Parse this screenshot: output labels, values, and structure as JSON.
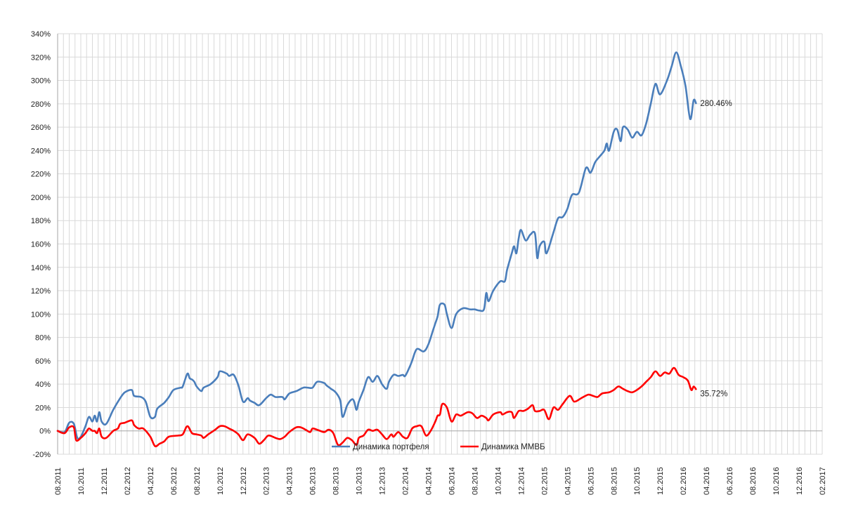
{
  "chart_data": {
    "type": "line",
    "title": "",
    "xlabel": "",
    "ylabel": "",
    "ylim": [
      -20,
      340
    ],
    "y_ticks": [
      "-20%",
      "0%",
      "20%",
      "40%",
      "60%",
      "80%",
      "100%",
      "120%",
      "140%",
      "160%",
      "180%",
      "200%",
      "220%",
      "240%",
      "260%",
      "280%",
      "300%",
      "320%",
      "340%"
    ],
    "x_ticks": [
      "08.2011",
      "10.2011",
      "12.2011",
      "02.2012",
      "04.2012",
      "06.2012",
      "08.2012",
      "10.2012",
      "12.2012",
      "02.2013",
      "04.2013",
      "06.2013",
      "08.2013",
      "10.2013",
      "12.2013",
      "02.2014",
      "04.2014",
      "06.2014",
      "08.2014",
      "10.2014",
      "12.2014",
      "02.2015",
      "04.2015",
      "06.2015",
      "08.2015",
      "10.2015",
      "12.2015",
      "02.2016",
      "04.2016",
      "06.2016",
      "08.2016",
      "10.2016",
      "12.2016",
      "02.2017"
    ],
    "grid": true,
    "legend_position": "bottom",
    "series": [
      {
        "name": "Динамика портфеля",
        "color": "#4a7ebb",
        "end_label": "280.46%",
        "points": [
          [
            0,
            0
          ],
          [
            0.3,
            -1
          ],
          [
            0.5,
            7
          ],
          [
            0.7,
            6
          ],
          [
            0.85,
            -6
          ],
          [
            1.0,
            -5
          ],
          [
            1.2,
            4
          ],
          [
            1.35,
            12
          ],
          [
            1.5,
            8
          ],
          [
            1.6,
            13
          ],
          [
            1.7,
            8
          ],
          [
            1.8,
            16
          ],
          [
            1.9,
            8
          ],
          [
            2.1,
            6
          ],
          [
            2.4,
            18
          ],
          [
            2.7,
            28
          ],
          [
            2.9,
            33
          ],
          [
            3.2,
            35
          ],
          [
            3.3,
            30
          ],
          [
            3.6,
            29
          ],
          [
            3.8,
            25
          ],
          [
            4.0,
            12
          ],
          [
            4.2,
            12
          ],
          [
            4.3,
            19
          ],
          [
            4.6,
            24
          ],
          [
            4.8,
            29
          ],
          [
            5.0,
            35
          ],
          [
            5.3,
            37
          ],
          [
            5.4,
            38
          ],
          [
            5.6,
            49
          ],
          [
            5.7,
            45
          ],
          [
            5.8,
            44
          ],
          [
            5.9,
            42
          ],
          [
            6.0,
            38
          ],
          [
            6.2,
            34
          ],
          [
            6.3,
            37
          ],
          [
            6.6,
            40
          ],
          [
            6.9,
            46
          ],
          [
            7.0,
            51
          ],
          [
            7.3,
            49
          ],
          [
            7.4,
            47
          ],
          [
            7.6,
            48
          ],
          [
            7.8,
            39
          ],
          [
            8.0,
            25
          ],
          [
            8.2,
            28
          ],
          [
            8.3,
            26
          ],
          [
            8.5,
            24
          ],
          [
            8.7,
            22
          ],
          [
            9.0,
            28
          ],
          [
            9.2,
            31
          ],
          [
            9.4,
            29
          ],
          [
            9.7,
            29
          ],
          [
            9.8,
            27
          ],
          [
            10.0,
            32
          ],
          [
            10.3,
            34
          ],
          [
            10.6,
            37
          ],
          [
            10.8,
            37
          ],
          [
            11.0,
            37
          ],
          [
            11.2,
            42
          ],
          [
            11.5,
            41
          ],
          [
            11.6,
            39
          ],
          [
            11.8,
            36
          ],
          [
            12.0,
            33
          ],
          [
            12.2,
            26
          ],
          [
            12.3,
            12
          ],
          [
            12.5,
            22
          ],
          [
            12.7,
            27
          ],
          [
            12.8,
            25
          ],
          [
            12.9,
            18
          ],
          [
            13.0,
            25
          ],
          [
            13.2,
            35
          ],
          [
            13.4,
            46
          ],
          [
            13.6,
            42
          ],
          [
            13.8,
            47
          ],
          [
            14.0,
            40
          ],
          [
            14.2,
            36
          ],
          [
            14.3,
            42
          ],
          [
            14.5,
            48
          ],
          [
            14.7,
            47
          ],
          [
            14.9,
            48
          ],
          [
            15.0,
            47
          ],
          [
            15.2,
            55
          ],
          [
            15.3,
            60
          ],
          [
            15.5,
            70
          ],
          [
            15.8,
            68
          ],
          [
            16.0,
            74
          ],
          [
            16.2,
            86
          ],
          [
            16.3,
            92
          ],
          [
            16.4,
            98
          ],
          [
            16.5,
            108
          ],
          [
            16.7,
            108
          ],
          [
            16.8,
            100
          ],
          [
            17.0,
            88
          ],
          [
            17.2,
            100
          ],
          [
            17.5,
            105
          ],
          [
            17.8,
            104
          ],
          [
            18.0,
            104
          ],
          [
            18.2,
            103
          ],
          [
            18.4,
            104
          ],
          [
            18.5,
            118
          ],
          [
            18.6,
            111
          ],
          [
            18.8,
            120
          ],
          [
            19.1,
            128
          ],
          [
            19.3,
            128
          ],
          [
            19.4,
            138
          ],
          [
            19.6,
            152
          ],
          [
            19.7,
            158
          ],
          [
            19.8,
            152
          ],
          [
            19.9,
            165
          ],
          [
            20.0,
            172
          ],
          [
            20.2,
            163
          ],
          [
            20.4,
            168
          ],
          [
            20.6,
            169
          ],
          [
            20.7,
            148
          ],
          [
            20.8,
            158
          ],
          [
            21.0,
            162
          ],
          [
            21.1,
            152
          ],
          [
            21.4,
            170
          ],
          [
            21.6,
            182
          ],
          [
            21.8,
            183
          ],
          [
            22.0,
            190
          ],
          [
            22.2,
            202
          ],
          [
            22.5,
            204
          ],
          [
            22.8,
            225
          ],
          [
            23.0,
            221
          ],
          [
            23.2,
            230
          ],
          [
            23.4,
            235
          ],
          [
            23.6,
            240
          ],
          [
            23.7,
            246
          ],
          [
            23.8,
            240
          ],
          [
            24.0,
            256
          ],
          [
            24.15,
            258
          ],
          [
            24.3,
            248
          ],
          [
            24.4,
            260
          ],
          [
            24.6,
            258
          ],
          [
            24.8,
            251
          ],
          [
            25.0,
            256
          ],
          [
            25.2,
            253
          ],
          [
            25.4,
            263
          ],
          [
            25.6,
            280
          ],
          [
            25.8,
            297
          ],
          [
            26.0,
            288
          ],
          [
            26.3,
            300
          ],
          [
            26.5,
            312
          ],
          [
            26.7,
            324
          ],
          [
            26.9,
            312
          ],
          [
            27.1,
            295
          ],
          [
            27.3,
            267
          ],
          [
            27.45,
            283
          ],
          [
            27.55,
            280.5
          ]
        ]
      },
      {
        "name": "Динамика ММВБ",
        "color": "#ff0000",
        "end_label": "35.72%",
        "points": [
          [
            0,
            0
          ],
          [
            0.3,
            -2
          ],
          [
            0.5,
            3
          ],
          [
            0.7,
            3
          ],
          [
            0.8,
            -8
          ],
          [
            1.0,
            -6
          ],
          [
            1.2,
            -2
          ],
          [
            1.35,
            2
          ],
          [
            1.5,
            0
          ],
          [
            1.6,
            0
          ],
          [
            1.7,
            -2
          ],
          [
            1.8,
            2
          ],
          [
            1.9,
            -5
          ],
          [
            2.1,
            -6
          ],
          [
            2.4,
            0
          ],
          [
            2.6,
            2
          ],
          [
            2.7,
            6
          ],
          [
            2.9,
            7
          ],
          [
            3.2,
            9
          ],
          [
            3.3,
            5
          ],
          [
            3.5,
            2
          ],
          [
            3.7,
            2
          ],
          [
            4.0,
            -5
          ],
          [
            4.2,
            -13
          ],
          [
            4.4,
            -11
          ],
          [
            4.6,
            -9
          ],
          [
            4.8,
            -5
          ],
          [
            5.2,
            -4
          ],
          [
            5.4,
            -3
          ],
          [
            5.6,
            4
          ],
          [
            5.8,
            -2
          ],
          [
            6.0,
            -3
          ],
          [
            6.2,
            -4
          ],
          [
            6.3,
            -6
          ],
          [
            6.5,
            -3
          ],
          [
            6.8,
            1
          ],
          [
            7.0,
            4
          ],
          [
            7.2,
            4
          ],
          [
            7.4,
            2
          ],
          [
            7.6,
            0
          ],
          [
            7.8,
            -3
          ],
          [
            8.0,
            -8
          ],
          [
            8.2,
            -3
          ],
          [
            8.5,
            -6
          ],
          [
            8.7,
            -11
          ],
          [
            8.9,
            -8
          ],
          [
            9.1,
            -4
          ],
          [
            9.4,
            -6
          ],
          [
            9.6,
            -7
          ],
          [
            9.8,
            -5
          ],
          [
            10.0,
            -1
          ],
          [
            10.3,
            3
          ],
          [
            10.5,
            3
          ],
          [
            10.7,
            1
          ],
          [
            10.9,
            -1
          ],
          [
            11.0,
            2
          ],
          [
            11.2,
            1
          ],
          [
            11.5,
            -1
          ],
          [
            11.7,
            1
          ],
          [
            11.9,
            -2
          ],
          [
            12.1,
            -12
          ],
          [
            12.3,
            -10
          ],
          [
            12.5,
            -6
          ],
          [
            12.7,
            -8
          ],
          [
            12.9,
            -12
          ],
          [
            13.0,
            -6
          ],
          [
            13.2,
            -4
          ],
          [
            13.4,
            1
          ],
          [
            13.6,
            0
          ],
          [
            13.8,
            1
          ],
          [
            14.0,
            -3
          ],
          [
            14.2,
            -7
          ],
          [
            14.4,
            -3
          ],
          [
            14.5,
            -5
          ],
          [
            14.7,
            -1
          ],
          [
            14.9,
            -5
          ],
          [
            15.1,
            -6
          ],
          [
            15.3,
            2
          ],
          [
            15.5,
            4
          ],
          [
            15.7,
            4
          ],
          [
            15.9,
            -4
          ],
          [
            16.1,
            0
          ],
          [
            16.3,
            8
          ],
          [
            16.4,
            13
          ],
          [
            16.5,
            14
          ],
          [
            16.6,
            23
          ],
          [
            16.8,
            20
          ],
          [
            17.0,
            8
          ],
          [
            17.2,
            14
          ],
          [
            17.4,
            13
          ],
          [
            17.7,
            16
          ],
          [
            17.9,
            15
          ],
          [
            18.1,
            11
          ],
          [
            18.3,
            13
          ],
          [
            18.5,
            11
          ],
          [
            18.6,
            9
          ],
          [
            18.8,
            14
          ],
          [
            19.1,
            16
          ],
          [
            19.2,
            14
          ],
          [
            19.4,
            16
          ],
          [
            19.6,
            16
          ],
          [
            19.7,
            11
          ],
          [
            19.9,
            17
          ],
          [
            20.1,
            17
          ],
          [
            20.3,
            19
          ],
          [
            20.5,
            22
          ],
          [
            20.6,
            17
          ],
          [
            20.8,
            17
          ],
          [
            21.0,
            18
          ],
          [
            21.2,
            10
          ],
          [
            21.4,
            20
          ],
          [
            21.6,
            18
          ],
          [
            21.8,
            23
          ],
          [
            22.1,
            30
          ],
          [
            22.3,
            25
          ],
          [
            22.6,
            28
          ],
          [
            22.9,
            31
          ],
          [
            23.1,
            30
          ],
          [
            23.3,
            29
          ],
          [
            23.5,
            32
          ],
          [
            23.8,
            33
          ],
          [
            24.0,
            35
          ],
          [
            24.2,
            38
          ],
          [
            24.4,
            36
          ],
          [
            24.6,
            34
          ],
          [
            24.8,
            33
          ],
          [
            25.0,
            35
          ],
          [
            25.2,
            38
          ],
          [
            25.4,
            42
          ],
          [
            25.6,
            46
          ],
          [
            25.8,
            51
          ],
          [
            26.0,
            47
          ],
          [
            26.2,
            50
          ],
          [
            26.4,
            49
          ],
          [
            26.6,
            54
          ],
          [
            26.8,
            48
          ],
          [
            27.0,
            46
          ],
          [
            27.2,
            43
          ],
          [
            27.35,
            35
          ],
          [
            27.45,
            38
          ],
          [
            27.55,
            35.7
          ]
        ]
      }
    ]
  }
}
